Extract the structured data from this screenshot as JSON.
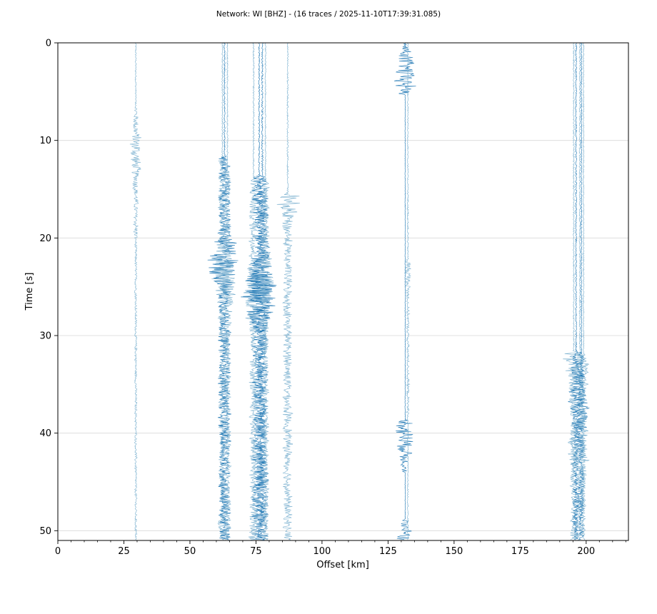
{
  "chart_data": {
    "type": "seismic-record-section",
    "title": "Network: WI [BHZ] - (16 traces / 2025-11-10T17:39:31.085)",
    "xlabel": "Offset [km]",
    "ylabel": "Time [s]",
    "xlim": [
      0,
      216
    ],
    "ylim": [
      51,
      0
    ],
    "y_inverted": true,
    "x_ticks": [
      0,
      25,
      50,
      75,
      100,
      125,
      150,
      175,
      200
    ],
    "y_ticks": [
      0,
      10,
      20,
      30,
      40,
      50
    ],
    "grid": "horizontal",
    "colors": {
      "dark": "#1f77b4",
      "light": "#7ab0cf"
    },
    "traces": [
      {
        "offset": 29.5,
        "color": "light",
        "noise": 0.3,
        "bursts": [
          {
            "t0": 6.5,
            "t1": 20,
            "amp": 2.2,
            "peak": 11.3
          },
          {
            "t0": 20,
            "t1": 51,
            "amp": 0.6
          }
        ]
      },
      {
        "offset": 62.3,
        "color": "light",
        "noise": 0.25,
        "bursts": [
          {
            "t0": 11.5,
            "t1": 51,
            "amp": 3.5,
            "peak": 23.5
          }
        ]
      },
      {
        "offset": 63.1,
        "color": "dark",
        "noise": 0.3,
        "bursts": [
          {
            "t0": 11.5,
            "t1": 51,
            "amp": 5.5,
            "peak": 22.5
          }
        ]
      },
      {
        "offset": 64.2,
        "color": "light",
        "noise": 0.25,
        "bursts": [
          {
            "t0": 13,
            "t1": 51,
            "amp": 3.0,
            "peak": 25
          }
        ]
      },
      {
        "offset": 74.1,
        "color": "light",
        "noise": 0.3,
        "bursts": [
          {
            "t0": 13.5,
            "t1": 51,
            "amp": 4.0,
            "peak": 26
          }
        ]
      },
      {
        "offset": 76.2,
        "color": "dark",
        "noise": 0.3,
        "bursts": [
          {
            "t0": 13.5,
            "t1": 51,
            "amp": 6.0,
            "peak": 25.5
          }
        ]
      },
      {
        "offset": 77.4,
        "color": "dark",
        "noise": 0.35,
        "bursts": [
          {
            "t0": 13.5,
            "t1": 51,
            "amp": 5.5,
            "peak": 25
          }
        ]
      },
      {
        "offset": 78.6,
        "color": "light",
        "noise": 0.25,
        "bursts": [
          {
            "t0": 14,
            "t1": 51,
            "amp": 3.2,
            "peak": 24
          }
        ]
      },
      {
        "offset": 87.0,
        "color": "light",
        "noise": 0.3,
        "bursts": [
          {
            "t0": 15.3,
            "t1": 51,
            "amp": 4.0,
            "peak": 15.8
          }
        ]
      },
      {
        "offset": 131.5,
        "color": "dark",
        "noise": 0.15,
        "bursts": [
          {
            "t0": 0,
            "t1": 5.3,
            "amp": 4.0,
            "peak": 3.5
          },
          {
            "t0": 38.5,
            "t1": 44,
            "amp": 3.5,
            "peak": 40
          },
          {
            "t0": 48.8,
            "t1": 51,
            "amp": 3.2,
            "peak": 50.3
          }
        ]
      },
      {
        "offset": 132.5,
        "color": "light",
        "noise": 0.25,
        "bursts": [
          {
            "t0": 14.5,
            "t1": 22,
            "amp": 0.4
          },
          {
            "t0": 22,
            "t1": 38,
            "amp": 1.3,
            "peak": 23
          }
        ]
      },
      {
        "offset": 195.3,
        "color": "light",
        "noise": 0.3,
        "bursts": [
          {
            "t0": 31.5,
            "t1": 51,
            "amp": 3.5,
            "peak": 32
          }
        ]
      },
      {
        "offset": 196.2,
        "color": "dark",
        "noise": 0.3,
        "bursts": [
          {
            "t0": 31.5,
            "t1": 51,
            "amp": 3.0,
            "peak": 36
          }
        ]
      },
      {
        "offset": 197.6,
        "color": "light",
        "noise": 0.3,
        "bursts": [
          {
            "t0": 31.5,
            "t1": 51,
            "amp": 4.0,
            "peak": 41.5
          }
        ]
      },
      {
        "offset": 198.2,
        "color": "dark",
        "noise": 0.25,
        "bursts": [
          {
            "t0": 31.5,
            "t1": 51,
            "amp": 2.5,
            "peak": 38
          }
        ]
      },
      {
        "offset": 199.0,
        "color": "light",
        "noise": 0.25,
        "bursts": [
          {
            "t0": 31.8,
            "t1": 51,
            "amp": 2.0,
            "peak": 34
          }
        ]
      }
    ]
  }
}
